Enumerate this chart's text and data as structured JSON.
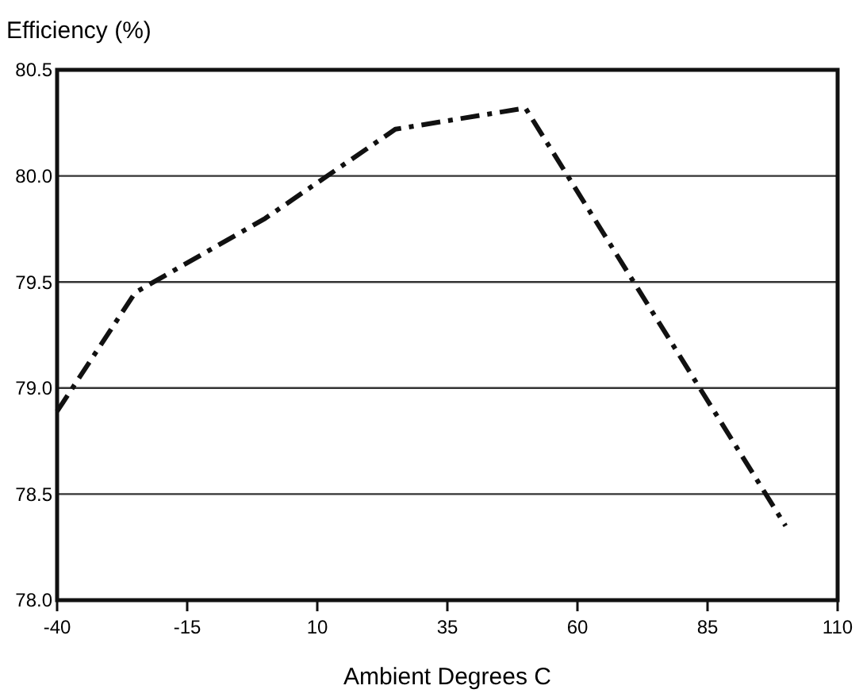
{
  "chart_data": {
    "type": "line",
    "ylabel": "Efficiency (%)",
    "xlabel": "Ambient Degrees C",
    "x": [
      -40,
      -25,
      0,
      25,
      50,
      100
    ],
    "series": [
      {
        "color": "#111111",
        "values": [
          78.89,
          79.45,
          79.8,
          80.22,
          80.32,
          78.35
        ]
      }
    ],
    "xlim": [
      -40,
      110
    ],
    "xticks": [
      -40,
      -15,
      10,
      35,
      60,
      85,
      110
    ],
    "ylim": [
      78.0,
      80.5
    ],
    "yticks": [
      {
        "value": 78.0,
        "label": "78.0"
      },
      {
        "value": 78.5,
        "label": "78.5"
      },
      {
        "value": 79.0,
        "label": "79.0"
      },
      {
        "value": 79.5,
        "label": "79.5"
      },
      {
        "value": 80.0,
        "label": "80.0"
      },
      {
        "value": 80.5,
        "label": "80.5"
      }
    ],
    "grid": "y",
    "line_style": "dashdot"
  }
}
